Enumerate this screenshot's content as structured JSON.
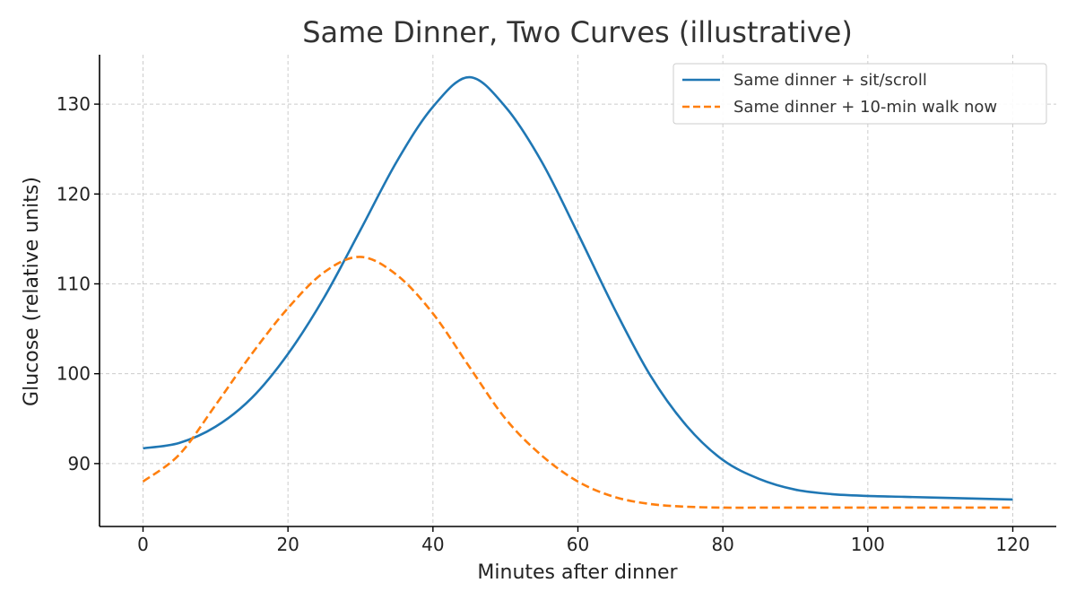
{
  "chart_data": {
    "type": "line",
    "title": "Same Dinner, Two Curves (illustrative)",
    "xlabel": "Minutes after dinner",
    "ylabel": "Glucose (relative units)",
    "xlim": [
      -6,
      126
    ],
    "ylim": [
      83,
      135.5
    ],
    "xticks": [
      0,
      20,
      40,
      60,
      80,
      100,
      120
    ],
    "yticks": [
      90,
      100,
      110,
      120,
      130
    ],
    "grid": true,
    "legend_position": "top-right",
    "series": [
      {
        "name": "Same dinner + sit/scroll",
        "color": "#1f77b4",
        "style": "solid",
        "x": [
          0,
          5,
          10,
          15,
          20,
          25,
          30,
          35,
          40,
          45,
          50,
          55,
          60,
          65,
          70,
          75,
          80,
          85,
          90,
          95,
          100,
          105,
          110,
          115,
          120
        ],
        "y": [
          91.7,
          92.3,
          94.1,
          97.3,
          102.2,
          108.5,
          116.0,
          123.6,
          129.7,
          133.0,
          129.7,
          123.6,
          115.6,
          107.3,
          99.8,
          94.2,
          90.4,
          88.3,
          87.1,
          86.6,
          86.4,
          86.3,
          86.2,
          86.1,
          86.0
        ]
      },
      {
        "name": "Same dinner + 10-min walk now",
        "color": "#ff7f0e",
        "style": "dashed",
        "x": [
          0,
          5,
          10,
          15,
          20,
          25,
          30,
          35,
          40,
          45,
          50,
          55,
          60,
          65,
          70,
          75,
          80,
          85,
          90,
          95,
          100,
          105,
          110,
          115,
          120
        ],
        "y": [
          88.0,
          91.0,
          96.5,
          102.2,
          107.3,
          111.3,
          113.0,
          111.0,
          106.7,
          100.8,
          95.0,
          90.9,
          88.0,
          86.3,
          85.5,
          85.2,
          85.1,
          85.1,
          85.1,
          85.1,
          85.1,
          85.1,
          85.1,
          85.1,
          85.1
        ]
      }
    ]
  }
}
